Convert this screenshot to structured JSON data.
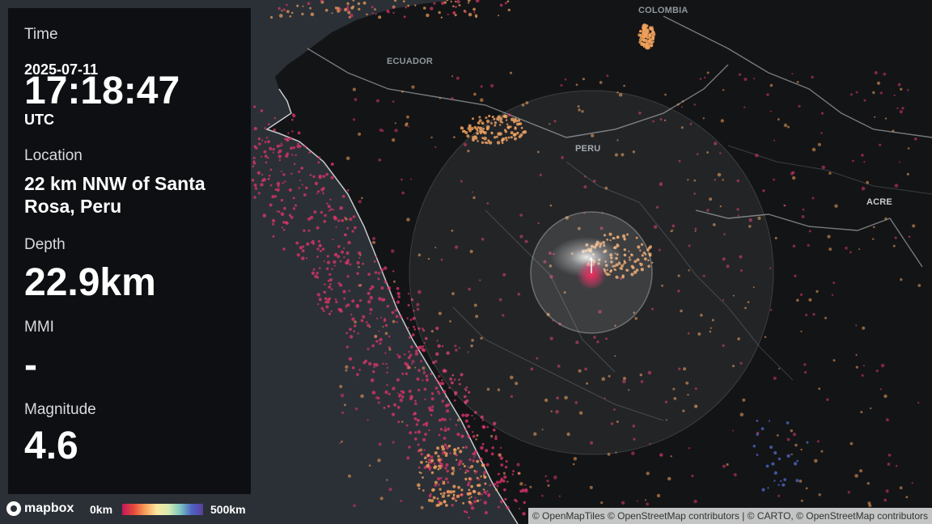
{
  "panel": {
    "time_label": "Time",
    "date": "2025-07-11",
    "time": "17:18:47",
    "timezone": "UTC",
    "location_label": "Location",
    "location_line1": "22 km NNW of Santa",
    "location_line2": "Rosa, Peru",
    "depth_label": "Depth",
    "depth": "22.9km",
    "mmi_label": "MMI",
    "mmi": "-",
    "magnitude_label": "Magnitude",
    "magnitude": "4.6"
  },
  "map": {
    "labels": {
      "colombia": "COLOMBIA",
      "ecuador": "ECUADOR",
      "peru": "PERU",
      "acre": "ACRE"
    },
    "colors": {
      "ocean": "#2b3036",
      "land": "#131416",
      "quake_shallow": "#e0366b",
      "quake_mid": "#f5a35c",
      "quake_deep": "#4d64c2"
    }
  },
  "legend": {
    "logo_text": "mapbox",
    "depth_min": "0km",
    "depth_max": "500km"
  },
  "attribution": "© OpenMapTiles © OpenStreetMap contributors | © CARTO, © OpenStreetMap contributors"
}
